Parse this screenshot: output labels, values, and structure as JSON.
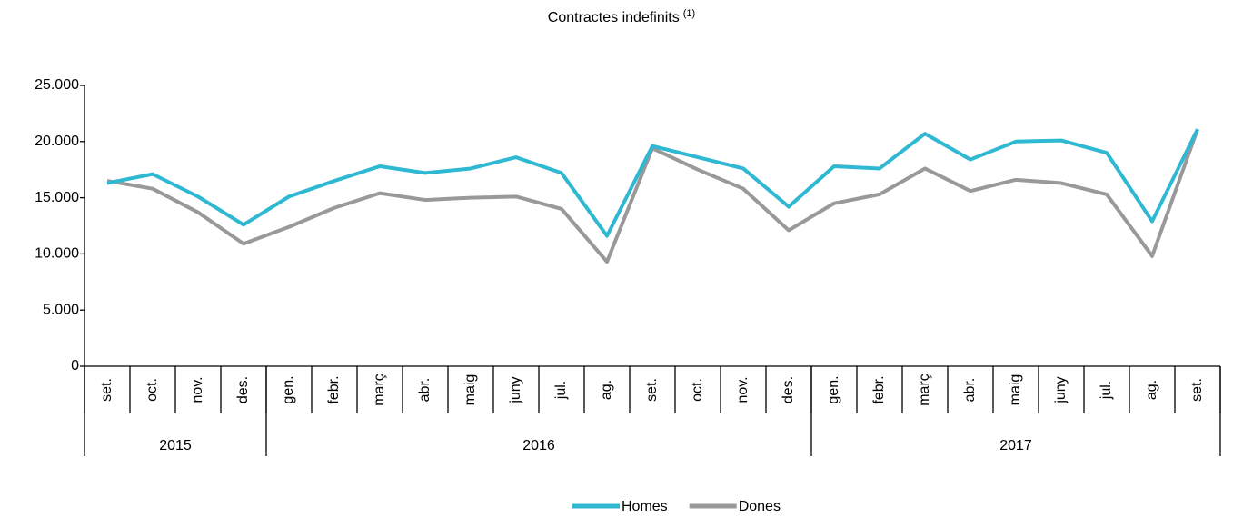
{
  "chart_data": {
    "type": "line",
    "title": "Contractes indefinits",
    "title_superscript": "(1)",
    "categories": [
      "set.",
      "oct.",
      "nov.",
      "des.",
      "gen.",
      "febr.",
      "març",
      "abr.",
      "maig",
      "juny",
      "jul.",
      "ag.",
      "set.",
      "oct.",
      "nov.",
      "des.",
      "gen.",
      "febr.",
      "març",
      "abr.",
      "maig",
      "juny",
      "jul.",
      "ag.",
      "set."
    ],
    "groups": [
      {
        "label": "2015",
        "count": 4
      },
      {
        "label": "2016",
        "count": 12
      },
      {
        "label": "2017",
        "count": 9
      }
    ],
    "series": [
      {
        "name": "Homes",
        "color": "#2fb8d1",
        "values": [
          16300,
          17100,
          15100,
          12600,
          15100,
          16500,
          17800,
          17200,
          17600,
          18600,
          17200,
          11600,
          19600,
          18600,
          17600,
          14200,
          17800,
          17600,
          20700,
          18400,
          20000,
          20100,
          19000,
          12900,
          21100
        ]
      },
      {
        "name": "Dones",
        "color": "#999999",
        "values": [
          16500,
          15800,
          13700,
          10900,
          12400,
          14100,
          15400,
          14800,
          15000,
          15100,
          14000,
          9300,
          19400,
          17500,
          15800,
          12100,
          14500,
          15300,
          17600,
          15600,
          16600,
          16300,
          15300,
          9800,
          21100
        ]
      }
    ],
    "ylim": [
      0,
      25000
    ],
    "yticks": [
      0,
      {
        "value": 5000,
        "label": "5.000"
      },
      {
        "value": 10000,
        "label": "10.000"
      },
      {
        "value": 15000,
        "label": "15.000"
      },
      {
        "value": 20000,
        "label": "20.000"
      },
      {
        "value": 25000,
        "label": "25.000"
      }
    ],
    "grid": false,
    "legend": "bottom"
  }
}
